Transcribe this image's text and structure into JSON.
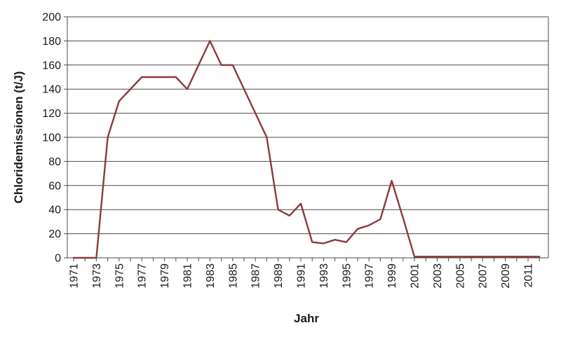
{
  "chart_data": {
    "type": "line",
    "title": "",
    "xlabel": "Jahr",
    "ylabel": "Chloridemissionen (t/J)",
    "xlim": [
      1971,
      2012
    ],
    "ylim": [
      0,
      200
    ],
    "yticks": [
      0,
      20,
      40,
      60,
      80,
      100,
      120,
      140,
      160,
      180,
      200
    ],
    "xtick_labels": [
      "1971",
      "1973",
      "1975",
      "1977",
      "1979",
      "1981",
      "1983",
      "1985",
      "1987",
      "1989",
      "1991",
      "1993",
      "1995",
      "1997",
      "1999",
      "2001",
      "2003",
      "2005",
      "2007",
      "2009",
      "2011"
    ],
    "grid": "horizontal",
    "line_color": "#8b3a3e",
    "series": [
      {
        "x": [
          1971,
          1972,
          1973,
          1974,
          1975,
          1976,
          1977,
          1978,
          1979,
          1980,
          1981,
          1982,
          1983,
          1984,
          1985,
          1986,
          1987,
          1988,
          1989,
          1990,
          1991,
          1992,
          1993,
          1994,
          1995,
          1996,
          1997,
          1998,
          1999,
          2000,
          2001,
          2002,
          2003,
          2004,
          2005,
          2006,
          2007,
          2008,
          2009,
          2010,
          2011,
          2012
        ],
        "y": [
          0,
          0,
          0,
          100,
          130,
          140,
          150,
          150,
          150,
          150,
          140,
          160,
          180,
          160,
          160,
          140,
          120,
          100,
          40,
          35,
          45,
          13,
          12,
          15,
          13,
          24,
          27,
          32,
          64,
          33,
          1,
          1,
          1,
          1,
          1,
          1,
          1,
          1,
          1,
          1,
          1,
          1
        ]
      }
    ]
  }
}
